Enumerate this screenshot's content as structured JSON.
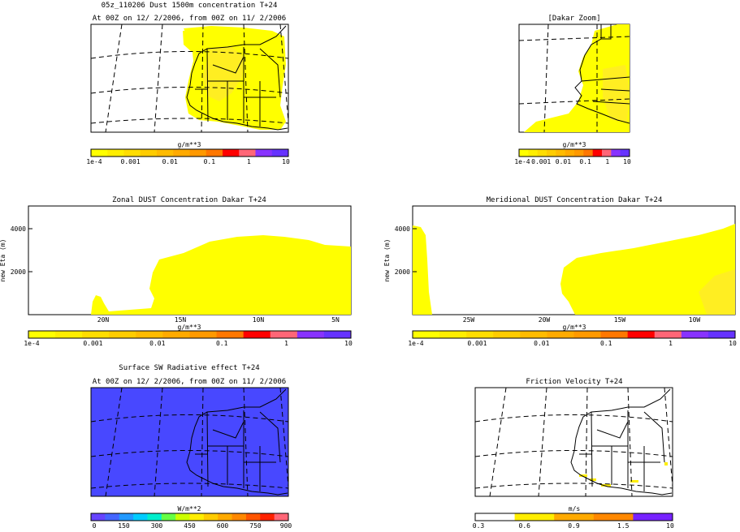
{
  "colors": {
    "dust": [
      "#ffff00",
      "#ffee00",
      "#ffdd00",
      "#ffcc00",
      "#ffbb00",
      "#ffaa00",
      "#ff9900",
      "#ff7700",
      "#ff0000",
      "#ff6677",
      "#8833ff",
      "#6633ff"
    ],
    "sw": [
      "#6644ff",
      "#4466ff",
      "#2299ff",
      "#00ccff",
      "#00eecc",
      "#66ff44",
      "#ccff00",
      "#ffee00",
      "#ffcc00",
      "#ffaa00",
      "#ff8800",
      "#ff5500",
      "#ff2200",
      "#ff6677"
    ],
    "ustar": [
      "#ffffff",
      "#ffee00",
      "#ffaa00",
      "#ff8800",
      "#7722ff"
    ],
    "sw_fill": "#4848ff",
    "dust_fill": "#ffff00",
    "dust_fill2": "#ffee22"
  },
  "panels": {
    "map1": {
      "title": "05z_110206 Dust 1500m concentration T+24",
      "subtitle": "At 00Z on 12/ 2/2006, from 00Z on 11/ 2/2006",
      "unit": "g/m**3",
      "ticks": [
        "1e-4",
        "0.001",
        "0.01",
        "0.1",
        "1",
        "10"
      ]
    },
    "map2": {
      "title": "[Dakar Zoom]",
      "unit": "g/m**3",
      "ticks": [
        "1e-4",
        "0.001",
        "0.01",
        "0.1",
        "1",
        "10"
      ]
    },
    "zonal": {
      "title": "Zonal DUST Concentration Dakar T+24",
      "ylabel": "new Eta (m)",
      "yticks": [
        "4000",
        "2000"
      ],
      "xticks": [
        "20N",
        "15N",
        "10N",
        "5N"
      ],
      "unit": "g/m**3",
      "ticks": [
        "1e-4",
        "0.001",
        "0.01",
        "0.1",
        "1",
        "10"
      ]
    },
    "merid": {
      "title": "Meridional DUST Concentration Dakar T+24",
      "ylabel": "new Eta (m)",
      "yticks": [
        "4000",
        "2000"
      ],
      "xticks": [
        "25W",
        "20W",
        "15W",
        "10W"
      ],
      "unit": "g/m**3",
      "ticks": [
        "1e-4",
        "0.001",
        "0.01",
        "0.1",
        "1",
        "10"
      ]
    },
    "sw": {
      "title": "Surface SW Radiative effect T+24",
      "subtitle": "At 00Z on 12/ 2/2006, from 00Z on 11/ 2/2006",
      "unit": "W/m**2",
      "ticks": [
        "0",
        "150",
        "300",
        "450",
        "600",
        "750",
        "900"
      ]
    },
    "ustar": {
      "title": "Friction Velocity T+24",
      "unit": "m/s",
      "ticks": [
        "0.3",
        "0.6",
        "0.9",
        "1.5",
        "10"
      ]
    }
  },
  "chart_data": [
    {
      "type": "heatmap",
      "title": "05z_110206 Dust 1500m concentration T+24",
      "colorbar_unit": "g/m**3",
      "colorbar_ticks": [
        0.0001,
        0.001,
        0.01,
        0.1,
        1,
        10
      ]
    },
    {
      "type": "heatmap",
      "title": "[Dakar Zoom]",
      "colorbar_unit": "g/m**3",
      "colorbar_ticks": [
        0.0001,
        0.001,
        0.01,
        0.1,
        1,
        10
      ]
    },
    {
      "type": "area",
      "title": "Zonal DUST Concentration Dakar T+24",
      "ylabel": "new Eta (m)",
      "yticks": [
        2000,
        4000
      ],
      "xticks": [
        "20N",
        "15N",
        "10N",
        "5N"
      ],
      "colorbar_unit": "g/m**3"
    },
    {
      "type": "area",
      "title": "Meridional DUST Concentration Dakar T+24",
      "ylabel": "new Eta (m)",
      "yticks": [
        2000,
        4000
      ],
      "xticks": [
        "25W",
        "20W",
        "15W",
        "10W"
      ],
      "colorbar_unit": "g/m**3"
    },
    {
      "type": "heatmap",
      "title": "Surface SW Radiative effect T+24",
      "colorbar_unit": "W/m**2",
      "colorbar_ticks": [
        0,
        150,
        300,
        450,
        600,
        750,
        900
      ]
    },
    {
      "type": "heatmap",
      "title": "Friction Velocity T+24",
      "colorbar_unit": "m/s",
      "colorbar_ticks": [
        0.3,
        0.6,
        0.9,
        1.5,
        10
      ]
    }
  ]
}
